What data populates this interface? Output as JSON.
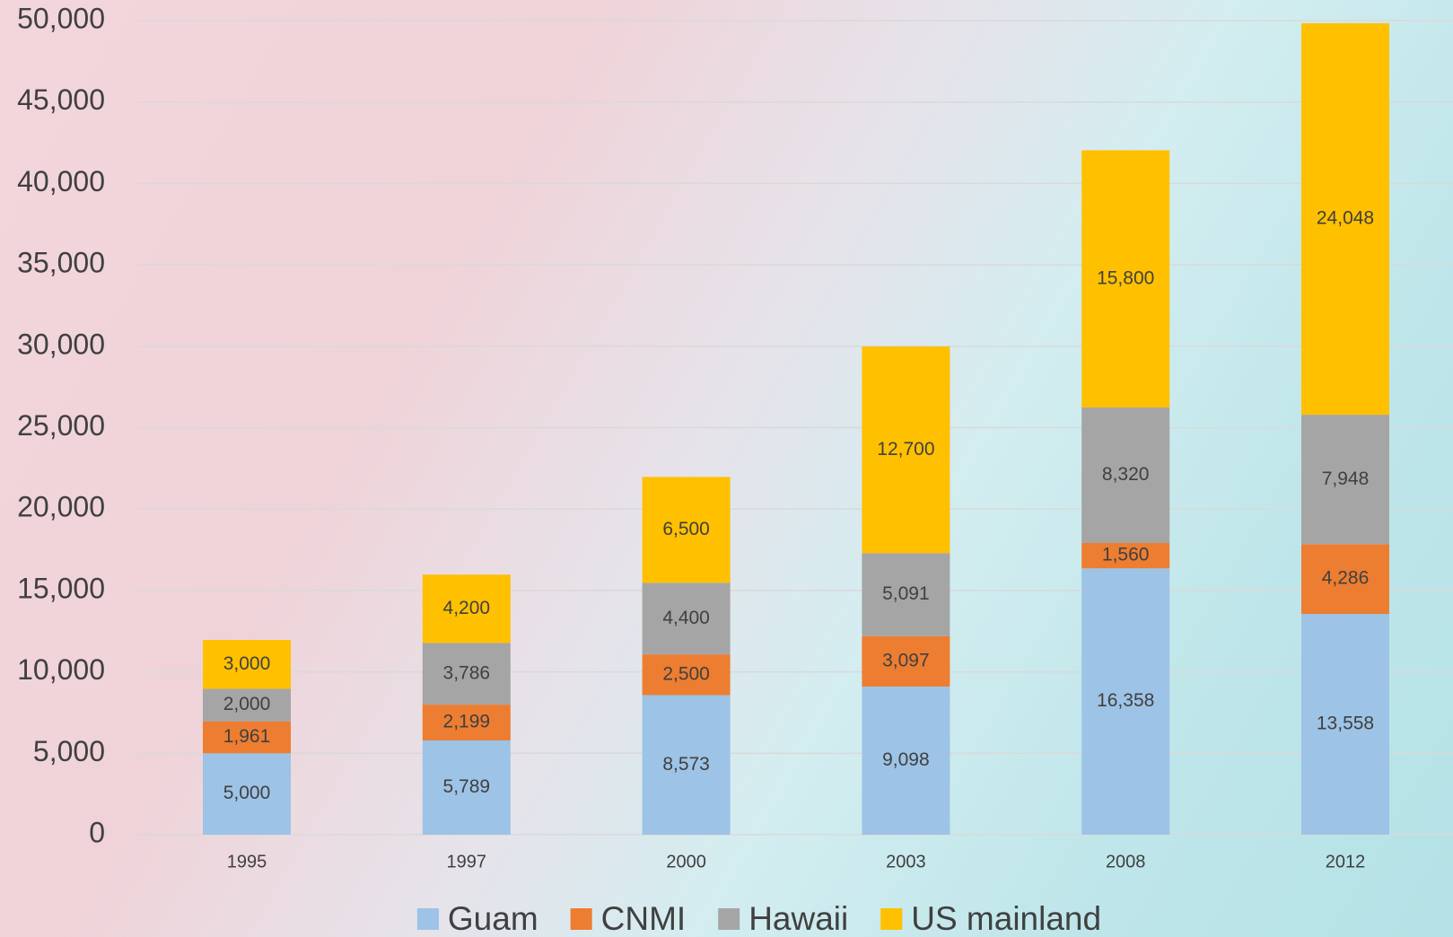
{
  "chart_data": {
    "type": "bar",
    "stacked": true,
    "categories": [
      "1995",
      "1997",
      "2000",
      "2003",
      "2008",
      "2012"
    ],
    "series": [
      {
        "name": "Guam",
        "color": "#9dc3e6",
        "values": [
          5000,
          5789,
          8573,
          9098,
          16358,
          13558
        ],
        "value_labels": [
          "5,000",
          "5,789",
          "8,573",
          "9,098",
          "16,358",
          "13,558"
        ]
      },
      {
        "name": "CNMI",
        "color": "#ed7d31",
        "values": [
          1961,
          2199,
          2500,
          3097,
          1560,
          4286
        ],
        "value_labels": [
          "1,961",
          "2,199",
          "2,500",
          "3,097",
          "1,560",
          "4,286"
        ]
      },
      {
        "name": "Hawaii",
        "color": "#a5a5a5",
        "values": [
          2000,
          3786,
          4400,
          5091,
          8320,
          7948
        ],
        "value_labels": [
          "2,000",
          "3,786",
          "4,400",
          "5,091",
          "8,320",
          "7,948"
        ]
      },
      {
        "name": "US mainland",
        "color": "#ffc000",
        "values": [
          3000,
          4200,
          6500,
          12700,
          15800,
          24048
        ],
        "value_labels": [
          "3,000",
          "4,200",
          "6,500",
          "12,700",
          "15,800",
          "24,048"
        ]
      }
    ],
    "ylim": [
      0,
      50000
    ],
    "yticks": [
      0,
      {
        "value": 5000,
        "label": "5,000"
      },
      {
        "value": 10000,
        "label": "10,000"
      },
      {
        "value": 15000,
        "label": "15,000"
      },
      {
        "value": 20000,
        "label": "20,000"
      },
      {
        "value": 25000,
        "label": "25,000"
      },
      {
        "value": 30000,
        "label": "30,000"
      },
      {
        "value": 35000,
        "label": "35,000"
      },
      {
        "value": 40000,
        "label": "40,000"
      },
      {
        "value": 45000,
        "label": "45,000"
      },
      {
        "value": 50000,
        "label": "50,000"
      }
    ],
    "grid": true,
    "legend": "bottom"
  }
}
